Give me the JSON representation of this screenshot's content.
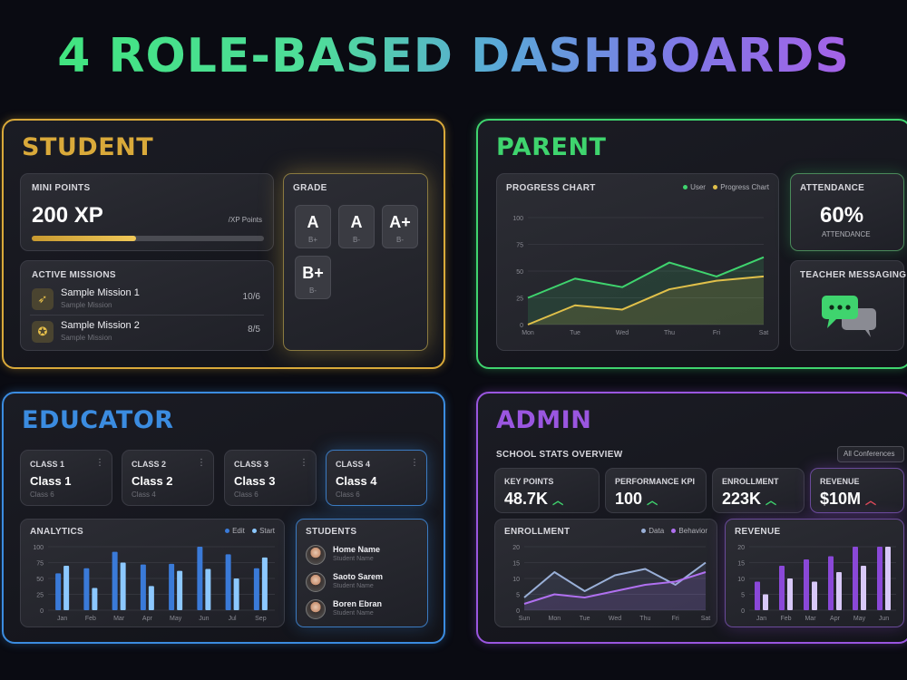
{
  "title": "4 ROLE-BASED DASHBOARDS",
  "student": {
    "title": "STUDENT",
    "points_label": "MINI POINTS",
    "points_value": "200 XP",
    "points_sub": "/XP Points",
    "points_progress": 0.45,
    "grade_label": "GRADE",
    "grades": [
      {
        "g": "A",
        "s": "B+"
      },
      {
        "g": "A",
        "s": "B-"
      },
      {
        "g": "A+",
        "s": "B-"
      },
      {
        "g": "B+",
        "s": "B-"
      }
    ],
    "missions_label": "ACTIVE MISSIONS",
    "missions": [
      {
        "name": "Sample Mission 1",
        "sub": "Sample Mission",
        "count": "10/6",
        "icon": "rocket-icon",
        "glyph": "➶"
      },
      {
        "name": "Sample Mission 2",
        "sub": "Sample Mission",
        "count": "8/5",
        "icon": "badge-icon",
        "glyph": "✪"
      }
    ]
  },
  "parent": {
    "title": "PARENT",
    "chart_label": "PROGRESS CHART",
    "legend": [
      "User",
      "Progress Chart"
    ],
    "attendance_label": "ATTENDANCE",
    "attendance_value": "60%",
    "attendance_sub": "ATTENDANCE",
    "messaging_label": "TEACHER MESSAGING",
    "messaging_icon": "chat-bubbles-icon"
  },
  "educator": {
    "title": "EDUCATOR",
    "classes": [
      {
        "label": "CLASS 1",
        "name": "Class 1",
        "sub": "Class 6"
      },
      {
        "label": "CLASS 2",
        "name": "Class 2",
        "sub": "Class 4"
      },
      {
        "label": "CLASS 3",
        "name": "Class 3",
        "sub": "Class 6"
      },
      {
        "label": "CLASS 4",
        "name": "Class 4",
        "sub": "Class 6"
      }
    ],
    "menu_glyph": "⋮",
    "analytics_label": "ANALYTICS",
    "analytics_legend": [
      "Edit",
      "Start"
    ],
    "students_label": "STUDENTS",
    "students": [
      {
        "name": "Home Name",
        "sub": "Student Name"
      },
      {
        "name": "Saoto Sarem",
        "sub": "Student Name"
      },
      {
        "name": "Boren Ebran",
        "sub": "Student Name"
      }
    ]
  },
  "admin": {
    "title": "ADMIN",
    "overview_label": "SCHOOL STATS OVERVIEW",
    "filter_label": "All Conferences",
    "kpis": [
      {
        "label": "KEY POINTS",
        "value": "48.7K",
        "trend": "up"
      },
      {
        "label": "PERFORMANCE KPI",
        "value": "100",
        "trend": "up"
      },
      {
        "label": "ENROLLMENT",
        "value": "223K",
        "trend": "up"
      },
      {
        "label": "REVENUE",
        "value": "$10M",
        "trend": "down"
      }
    ],
    "enrollment_label": "ENROLLMENT",
    "enrollment_legend": [
      "Data",
      "Behavior"
    ],
    "revenue_label": "REVENUE"
  },
  "colors": {
    "student": "#d9a93a",
    "parent": "#3fd46e",
    "educator": "#3b8ce0",
    "admin": "#9a56e0",
    "yellow_line": "#e0c04a",
    "blue_bar_dark": "#3a7ad8",
    "blue_bar_light": "#8cc8ff",
    "purple_bar_dark": "#8a48d8",
    "purple_bar_light": "#d8c8f8"
  },
  "chart_data": [
    {
      "type": "line",
      "title": "PROGRESS CHART",
      "x": [
        "Mon",
        "Tue",
        "Wed",
        "Thu",
        "Fri",
        "Sat"
      ],
      "y_ticks": [
        "0",
        "25",
        "50",
        "75",
        "100"
      ],
      "ylim": [
        0,
        100
      ],
      "series": [
        {
          "name": "User",
          "values": [
            25,
            43,
            35,
            58,
            45,
            63
          ],
          "color": "#3fd46e",
          "fill": "#3fd46e"
        },
        {
          "name": "Progress Chart",
          "values": [
            0,
            18,
            14,
            33,
            41,
            45
          ],
          "color": "#e0c04a",
          "fill": "#e0c04a"
        }
      ]
    },
    {
      "type": "bar",
      "title": "ANALYTICS",
      "x": [
        "Jan",
        "Feb",
        "Mar",
        "Apr",
        "May",
        "Jun",
        "Jul",
        "Sep"
      ],
      "y_ticks": [
        "0",
        "25",
        "50",
        "75",
        "100"
      ],
      "ylim": [
        0,
        100
      ],
      "series": [
        {
          "name": "Edit",
          "values": [
            58,
            66,
            92,
            72,
            73,
            100,
            88,
            66
          ],
          "color": "#3a7ad8"
        },
        {
          "name": "Start",
          "values": [
            70,
            35,
            75,
            38,
            62,
            65,
            50,
            83
          ],
          "color": "#8cc8ff"
        }
      ]
    },
    {
      "type": "line",
      "title": "ENROLLMENT",
      "x": [
        "Sun",
        "Mon",
        "Tue",
        "Wed",
        "Thu",
        "Fri",
        "Sat"
      ],
      "y_ticks": [
        "0",
        "5",
        "10",
        "15",
        "20"
      ],
      "ylim": [
        0,
        20
      ],
      "series": [
        {
          "name": "Data",
          "values": [
            4,
            12,
            6,
            11,
            13,
            8,
            15
          ],
          "color": "#9ab0d8",
          "fill": "#7a8ab8"
        },
        {
          "name": "Behavior",
          "values": [
            2,
            5,
            4,
            6,
            8,
            9,
            12
          ],
          "color": "#b070f0",
          "fill": "#a060e0"
        }
      ]
    },
    {
      "type": "bar",
      "title": "REVENUE",
      "x": [
        "Jan",
        "Feb",
        "Mar",
        "Apr",
        "May",
        "Jun"
      ],
      "y_ticks": [
        "0",
        "5",
        "10",
        "15",
        "20"
      ],
      "ylim": [
        0,
        20
      ],
      "series": [
        {
          "name": "",
          "values": [
            9,
            14,
            16,
            17,
            21,
            20
          ],
          "color": "#8a48d8"
        },
        {
          "name": "",
          "values": [
            5,
            10,
            9,
            12,
            14,
            21
          ],
          "color": "#d8c8f8"
        }
      ]
    }
  ]
}
